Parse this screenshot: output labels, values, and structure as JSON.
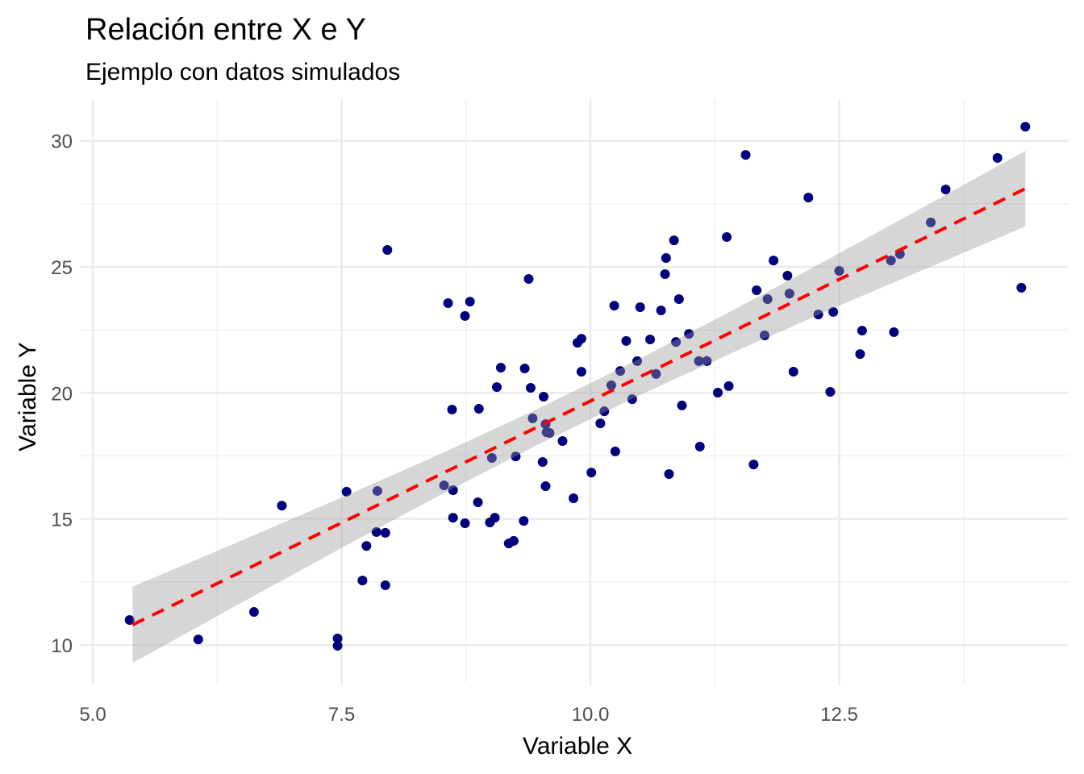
{
  "chart_data": {
    "type": "scatter",
    "title": "Relación entre X e Y",
    "subtitle": "Ejemplo con datos simulados",
    "xlabel": "Variable X",
    "ylabel": "Variable Y",
    "xlim": [
      5.0,
      14.6
    ],
    "ylim": [
      8.5,
      31.6
    ],
    "xticks": [
      5.0,
      7.5,
      10.0,
      12.5
    ],
    "xtick_labels": [
      "5.0",
      "7.5",
      "10.0",
      "12.5"
    ],
    "yticks": [
      10,
      15,
      20,
      25,
      30
    ],
    "ytick_labels": [
      "10",
      "15",
      "20",
      "25",
      "30"
    ],
    "x_minor": [
      6.25,
      8.75,
      11.25,
      13.75
    ],
    "y_minor": [
      12.5,
      17.5,
      22.5,
      27.5
    ],
    "grid": true,
    "colors": {
      "points": "#00007f",
      "fit_line": "#ff0000",
      "ci_band": "#999999",
      "grid": "#ebebeb"
    },
    "points": [
      [
        5.37,
        10.99
      ],
      [
        6.06,
        10.22
      ],
      [
        6.62,
        11.31
      ],
      [
        6.9,
        15.53
      ],
      [
        7.46,
        10.26
      ],
      [
        7.46,
        9.97
      ],
      [
        7.55,
        16.08
      ],
      [
        7.71,
        12.56
      ],
      [
        7.75,
        13.93
      ],
      [
        7.85,
        14.48
      ],
      [
        7.86,
        16.11
      ],
      [
        7.94,
        14.45
      ],
      [
        7.94,
        12.37
      ],
      [
        7.96,
        25.67
      ],
      [
        8.53,
        16.33
      ],
      [
        8.57,
        23.56
      ],
      [
        8.61,
        19.34
      ],
      [
        8.62,
        16.14
      ],
      [
        8.62,
        15.05
      ],
      [
        8.74,
        14.83
      ],
      [
        8.74,
        23.05
      ],
      [
        8.79,
        23.62
      ],
      [
        8.87,
        15.66
      ],
      [
        8.88,
        19.37
      ],
      [
        8.99,
        14.86
      ],
      [
        9.01,
        17.42
      ],
      [
        9.04,
        15.05
      ],
      [
        9.06,
        20.23
      ],
      [
        9.1,
        21.0
      ],
      [
        9.18,
        14.03
      ],
      [
        9.23,
        14.13
      ],
      [
        9.25,
        17.48
      ],
      [
        9.33,
        14.92
      ],
      [
        9.34,
        20.97
      ],
      [
        9.38,
        24.52
      ],
      [
        9.4,
        20.2
      ],
      [
        9.42,
        18.99
      ],
      [
        9.52,
        17.26
      ],
      [
        9.53,
        19.85
      ],
      [
        9.55,
        18.76
      ],
      [
        9.55,
        16.3
      ],
      [
        9.56,
        18.44
      ],
      [
        9.59,
        18.41
      ],
      [
        9.72,
        18.09
      ],
      [
        9.83,
        15.82
      ],
      [
        9.87,
        21.99
      ],
      [
        9.91,
        22.15
      ],
      [
        9.91,
        20.84
      ],
      [
        10.01,
        16.84
      ],
      [
        10.1,
        18.79
      ],
      [
        10.14,
        19.27
      ],
      [
        10.21,
        20.3
      ],
      [
        10.24,
        23.46
      ],
      [
        10.25,
        17.68
      ],
      [
        10.3,
        20.87
      ],
      [
        10.36,
        22.06
      ],
      [
        10.42,
        19.75
      ],
      [
        10.47,
        21.26
      ],
      [
        10.5,
        23.4
      ],
      [
        10.6,
        22.12
      ],
      [
        10.66,
        20.75
      ],
      [
        10.71,
        23.27
      ],
      [
        10.75,
        24.71
      ],
      [
        10.76,
        25.35
      ],
      [
        10.79,
        16.78
      ],
      [
        10.84,
        26.05
      ],
      [
        10.86,
        22.02
      ],
      [
        10.89,
        23.72
      ],
      [
        10.92,
        19.5
      ],
      [
        10.99,
        22.34
      ],
      [
        11.09,
        21.26
      ],
      [
        11.1,
        17.87
      ],
      [
        11.17,
        21.26
      ],
      [
        11.28,
        20.01
      ],
      [
        11.37,
        26.18
      ],
      [
        11.39,
        20.27
      ],
      [
        11.56,
        29.44
      ],
      [
        11.64,
        17.16
      ],
      [
        11.67,
        24.07
      ],
      [
        11.75,
        22.28
      ],
      [
        11.78,
        23.72
      ],
      [
        11.84,
        25.25
      ],
      [
        11.98,
        24.65
      ],
      [
        12.0,
        23.94
      ],
      [
        12.04,
        20.84
      ],
      [
        12.19,
        27.75
      ],
      [
        12.29,
        23.11
      ],
      [
        12.41,
        20.04
      ],
      [
        12.44,
        23.21
      ],
      [
        12.5,
        24.84
      ],
      [
        12.71,
        21.54
      ],
      [
        12.73,
        22.47
      ],
      [
        13.02,
        25.25
      ],
      [
        13.05,
        22.41
      ],
      [
        13.11,
        25.51
      ],
      [
        13.42,
        26.76
      ],
      [
        13.57,
        28.07
      ],
      [
        14.09,
        29.32
      ],
      [
        14.33,
        24.17
      ],
      [
        14.37,
        30.56
      ]
    ],
    "fit": {
      "method": "lm",
      "x": [
        5.4,
        6.5,
        7.5,
        8.5,
        9.5,
        10.5,
        11.5,
        12.5,
        13.5,
        14.37
      ],
      "y": [
        10.8,
        12.92,
        14.85,
        16.78,
        18.71,
        20.64,
        22.57,
        24.5,
        26.42,
        28.1
      ],
      "ci_lower": [
        9.29,
        11.69,
        13.85,
        15.97,
        18.0,
        19.92,
        21.72,
        23.46,
        25.14,
        26.6
      ],
      "ci_upper": [
        12.31,
        14.15,
        15.85,
        17.59,
        19.42,
        21.36,
        23.42,
        25.54,
        27.7,
        29.6
      ]
    }
  }
}
